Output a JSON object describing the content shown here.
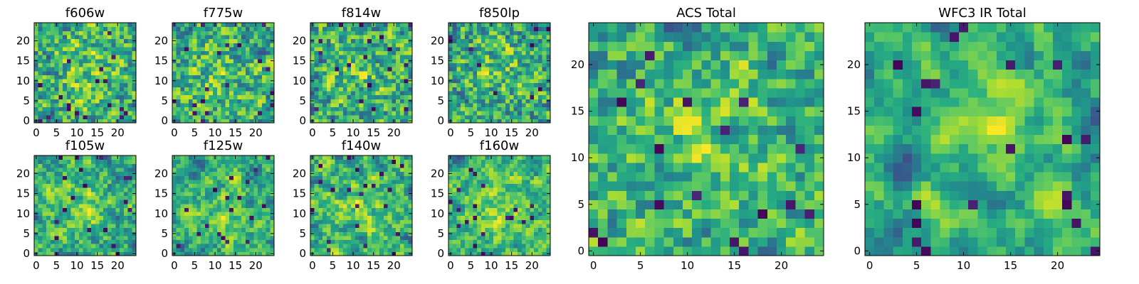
{
  "chart_data": [
    {
      "type": "heatmap",
      "title": "f606w",
      "rows": 25,
      "cols": 25,
      "xlim": [
        -0.5,
        24.5
      ],
      "ylim": [
        -0.5,
        24.5
      ],
      "xticks": [
        0,
        5,
        10,
        15,
        20
      ],
      "xtick_labels": [
        "0",
        "5",
        "10",
        "15",
        "20"
      ],
      "yticks": [
        0,
        5,
        10,
        15,
        20
      ],
      "ytick_labels": [
        "0",
        "5",
        "10",
        "15",
        "20"
      ],
      "colormap": "viridis",
      "seed": 1,
      "smooth": 0.35
    },
    {
      "type": "heatmap",
      "title": "f775w",
      "rows": 25,
      "cols": 25,
      "xlim": [
        -0.5,
        24.5
      ],
      "ylim": [
        -0.5,
        24.5
      ],
      "xticks": [
        0,
        5,
        10,
        15,
        20
      ],
      "xtick_labels": [
        "0",
        "5",
        "10",
        "15",
        "20"
      ],
      "yticks": [
        0,
        5,
        10,
        15,
        20
      ],
      "ytick_labels": [
        "0",
        "5",
        "10",
        "15",
        "20"
      ],
      "colormap": "viridis",
      "seed": 2,
      "smooth": 0.35
    },
    {
      "type": "heatmap",
      "title": "f814w",
      "rows": 25,
      "cols": 25,
      "xlim": [
        -0.5,
        24.5
      ],
      "ylim": [
        -0.5,
        24.5
      ],
      "xticks": [
        0,
        5,
        10,
        15,
        20
      ],
      "xtick_labels": [
        "0",
        "5",
        "10",
        "15",
        "20"
      ],
      "yticks": [
        0,
        5,
        10,
        15,
        20
      ],
      "ytick_labels": [
        "0",
        "5",
        "10",
        "15",
        "20"
      ],
      "colormap": "viridis",
      "seed": 3,
      "smooth": 0.3
    },
    {
      "type": "heatmap",
      "title": "f850lp",
      "rows": 25,
      "cols": 25,
      "xlim": [
        -0.5,
        24.5
      ],
      "ylim": [
        -0.5,
        24.5
      ],
      "xticks": [
        0,
        5,
        10,
        15,
        20
      ],
      "xtick_labels": [
        "0",
        "5",
        "10",
        "15",
        "20"
      ],
      "yticks": [
        0,
        5,
        10,
        15,
        20
      ],
      "ytick_labels": [
        "0",
        "5",
        "10",
        "15",
        "20"
      ],
      "colormap": "viridis",
      "seed": 4,
      "smooth": 0.3
    },
    {
      "type": "heatmap",
      "title": "f105w",
      "rows": 25,
      "cols": 25,
      "xlim": [
        -0.5,
        24.5
      ],
      "ylim": [
        -0.5,
        24.5
      ],
      "xticks": [
        0,
        5,
        10,
        15,
        20
      ],
      "xtick_labels": [
        "0",
        "5",
        "10",
        "15",
        "20"
      ],
      "yticks": [
        0,
        5,
        10,
        15,
        20
      ],
      "ytick_labels": [
        "0",
        "5",
        "10",
        "15",
        "20"
      ],
      "colormap": "viridis",
      "seed": 5,
      "smooth": 0.6
    },
    {
      "type": "heatmap",
      "title": "f125w",
      "rows": 25,
      "cols": 25,
      "xlim": [
        -0.5,
        24.5
      ],
      "ylim": [
        -0.5,
        24.5
      ],
      "xticks": [
        0,
        5,
        10,
        15,
        20
      ],
      "xtick_labels": [
        "0",
        "5",
        "10",
        "15",
        "20"
      ],
      "yticks": [
        0,
        5,
        10,
        15,
        20
      ],
      "ytick_labels": [
        "0",
        "5",
        "10",
        "15",
        "20"
      ],
      "colormap": "viridis",
      "seed": 6,
      "smooth": 0.6
    },
    {
      "type": "heatmap",
      "title": "f140w",
      "rows": 25,
      "cols": 25,
      "xlim": [
        -0.5,
        24.5
      ],
      "ylim": [
        -0.5,
        24.5
      ],
      "xticks": [
        0,
        5,
        10,
        15,
        20
      ],
      "xtick_labels": [
        "0",
        "5",
        "10",
        "15",
        "20"
      ],
      "yticks": [
        0,
        5,
        10,
        15,
        20
      ],
      "ytick_labels": [
        "0",
        "5",
        "10",
        "15",
        "20"
      ],
      "colormap": "viridis",
      "seed": 7,
      "smooth": 0.6
    },
    {
      "type": "heatmap",
      "title": "f160w",
      "rows": 25,
      "cols": 25,
      "xlim": [
        -0.5,
        24.5
      ],
      "ylim": [
        -0.5,
        24.5
      ],
      "xticks": [
        0,
        5,
        10,
        15,
        20
      ],
      "xtick_labels": [
        "0",
        "5",
        "10",
        "15",
        "20"
      ],
      "yticks": [
        0,
        5,
        10,
        15,
        20
      ],
      "ytick_labels": [
        "0",
        "5",
        "10",
        "15",
        "20"
      ],
      "colormap": "viridis",
      "seed": 8,
      "smooth": 0.6
    },
    {
      "type": "heatmap",
      "title": "ACS Total",
      "rows": 25,
      "cols": 25,
      "xlim": [
        -0.5,
        24.5
      ],
      "ylim": [
        -0.5,
        24.5
      ],
      "xticks": [
        0,
        5,
        10,
        15,
        20
      ],
      "xtick_labels": [
        "0",
        "5",
        "10",
        "15",
        "20"
      ],
      "yticks": [
        0,
        5,
        10,
        15,
        20
      ],
      "ytick_labels": [
        "0",
        "5",
        "10",
        "15",
        "20"
      ],
      "colormap": "viridis",
      "seed": 9,
      "smooth": 0.45
    },
    {
      "type": "heatmap",
      "title": "WFC3 IR Total",
      "rows": 25,
      "cols": 25,
      "xlim": [
        -0.5,
        24.5
      ],
      "ylim": [
        -0.5,
        24.5
      ],
      "xticks": [
        0,
        5,
        10,
        15,
        20
      ],
      "xtick_labels": [
        "0",
        "5",
        "10",
        "15",
        "20"
      ],
      "yticks": [
        0,
        5,
        10,
        15,
        20
      ],
      "ytick_labels": [
        "0",
        "5",
        "10",
        "15",
        "20"
      ],
      "colormap": "viridis",
      "seed": 10,
      "smooth": 0.75
    }
  ]
}
